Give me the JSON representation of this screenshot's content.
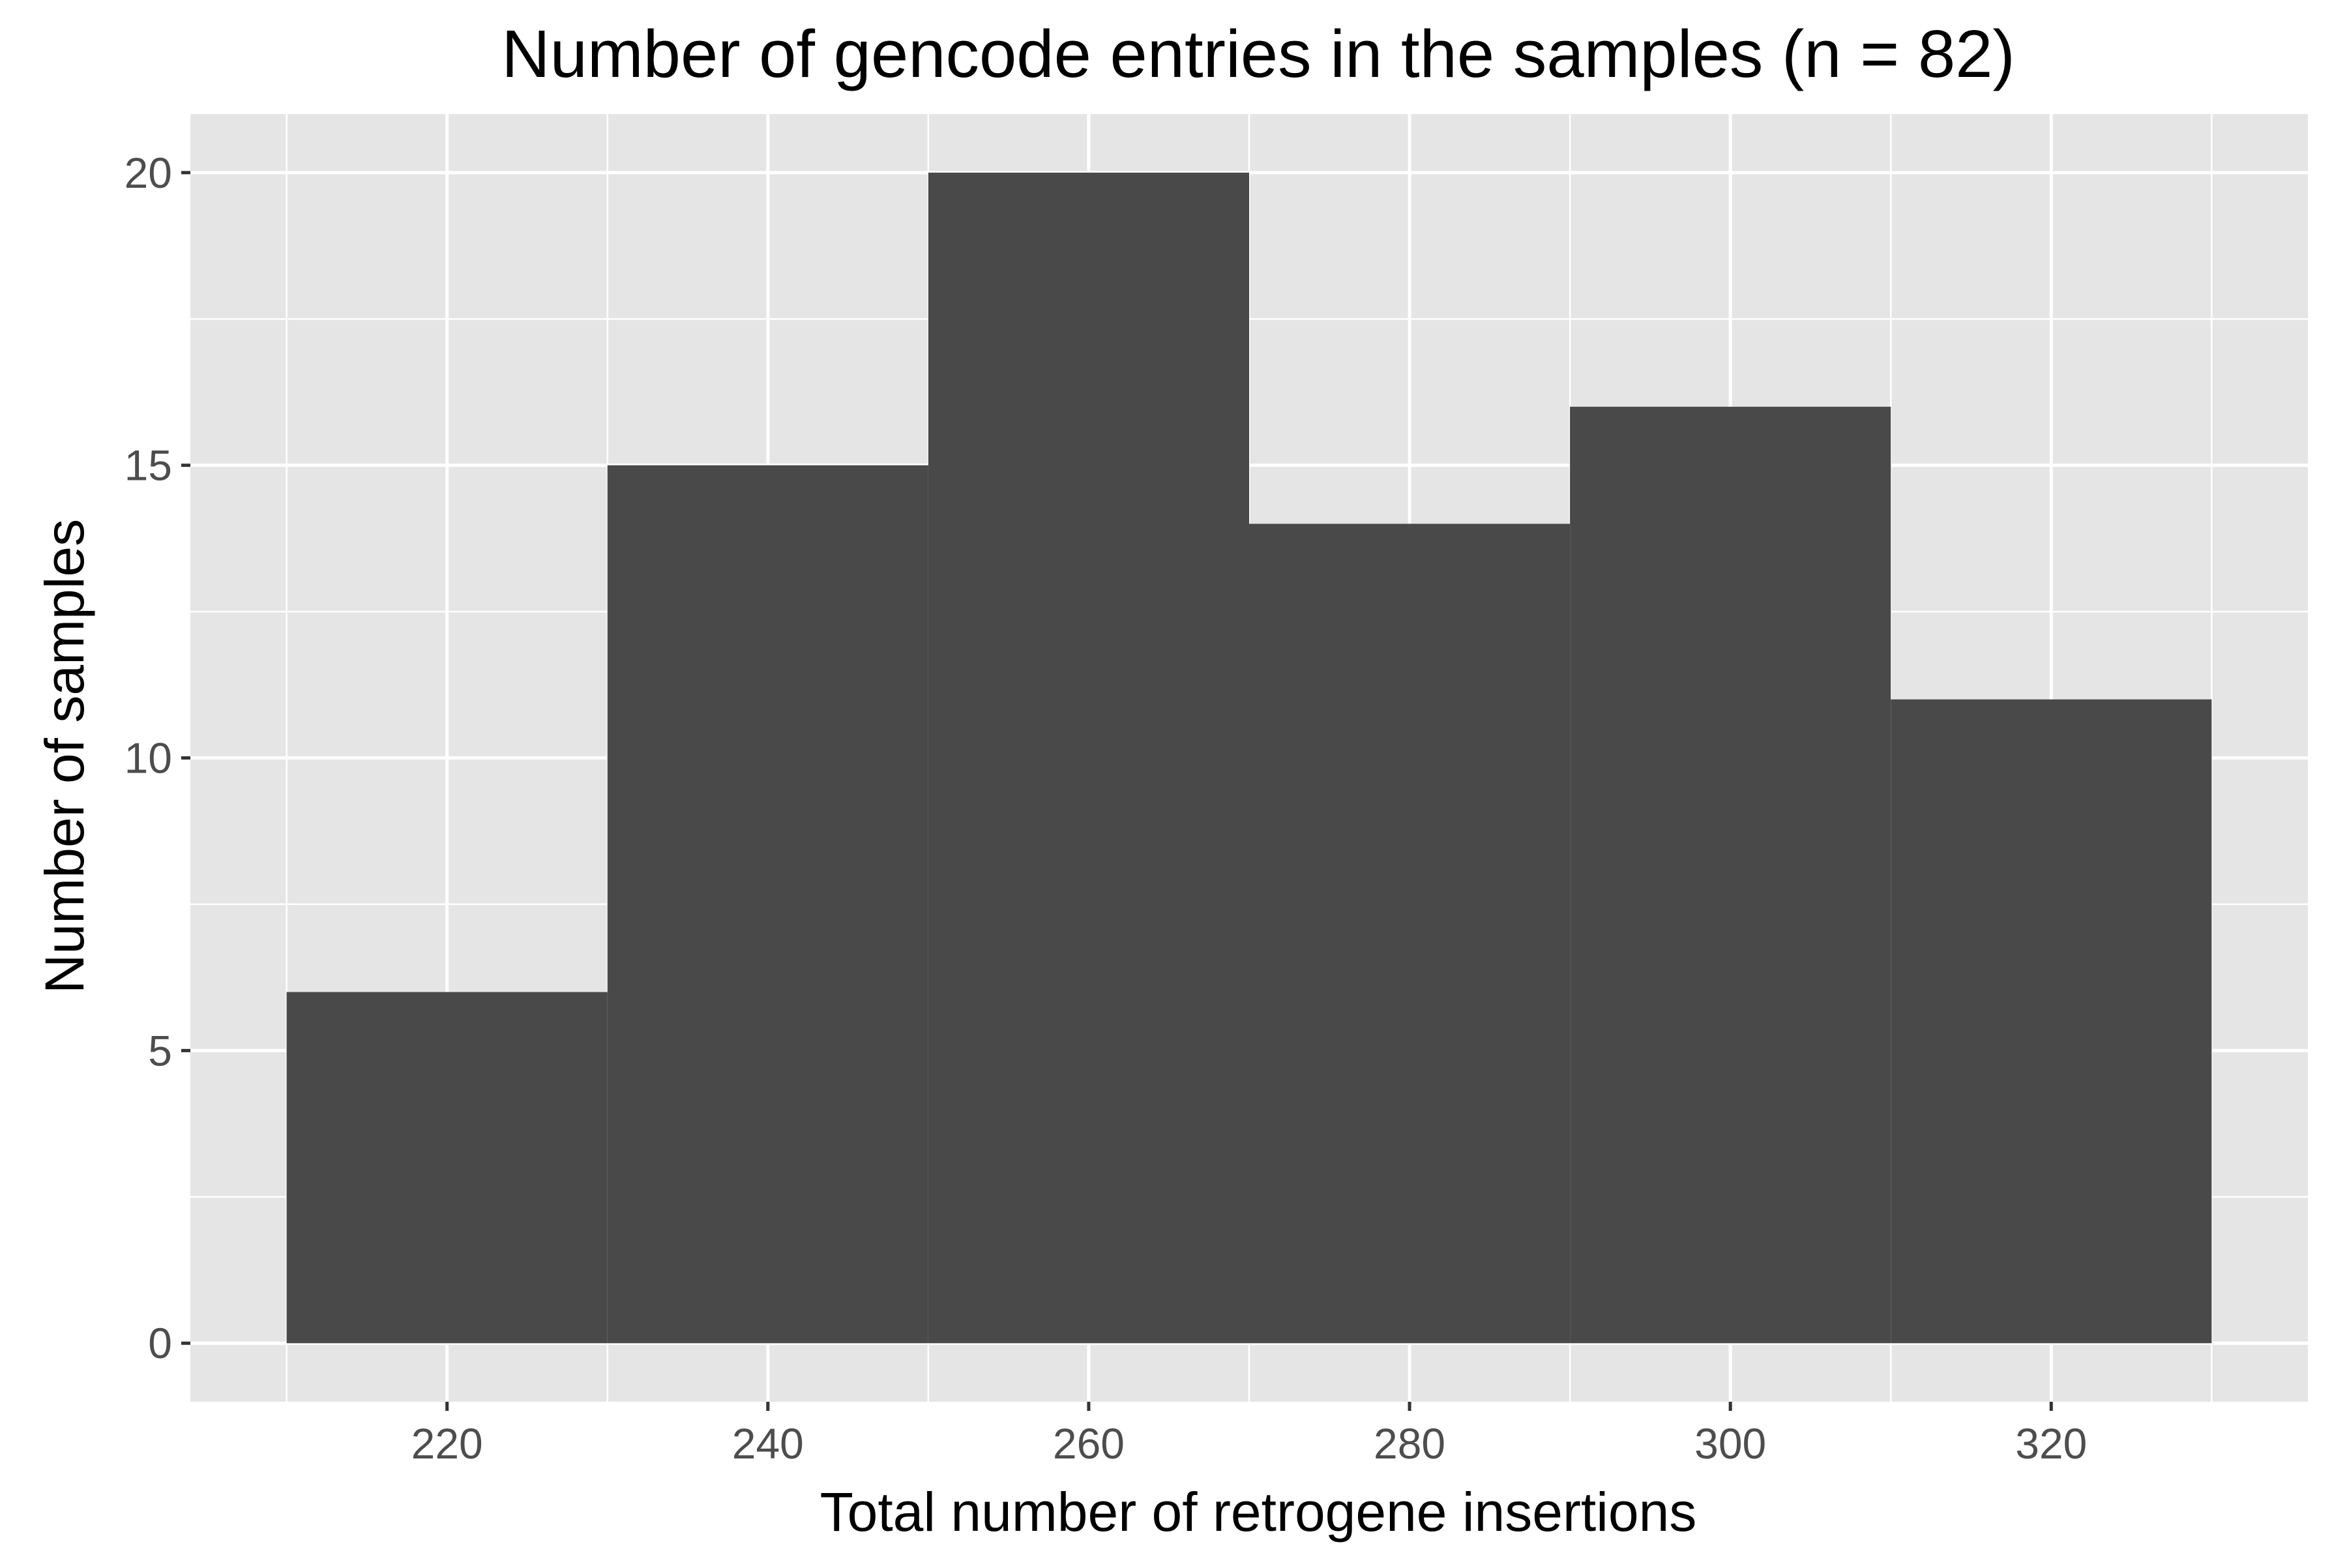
{
  "chart_data": {
    "type": "bar",
    "title": "Number of gencode entries in the samples (n = 82)",
    "xlabel": "Total number of retrogene insertions",
    "ylabel": "Number of samples",
    "bins": [
      {
        "start": 210,
        "end": 230,
        "count": 6
      },
      {
        "start": 230,
        "end": 250,
        "count": 15
      },
      {
        "start": 250,
        "end": 270,
        "count": 20
      },
      {
        "start": 270,
        "end": 290,
        "count": 14
      },
      {
        "start": 290,
        "end": 310,
        "count": 16
      },
      {
        "start": 310,
        "end": 330,
        "count": 11
      }
    ],
    "xlim": [
      204,
      336
    ],
    "ylim": [
      -1,
      21
    ],
    "x_ticks": [
      220,
      240,
      260,
      280,
      300,
      320
    ],
    "y_ticks": [
      0,
      5,
      10,
      15,
      20
    ],
    "grid": true,
    "legend": "none",
    "colors": {
      "bar_fill": "#494949",
      "panel_background": "#e5e5e5",
      "grid": "#ffffff",
      "tick_text": "#4d4d4d",
      "axis_text": "#000000"
    }
  }
}
